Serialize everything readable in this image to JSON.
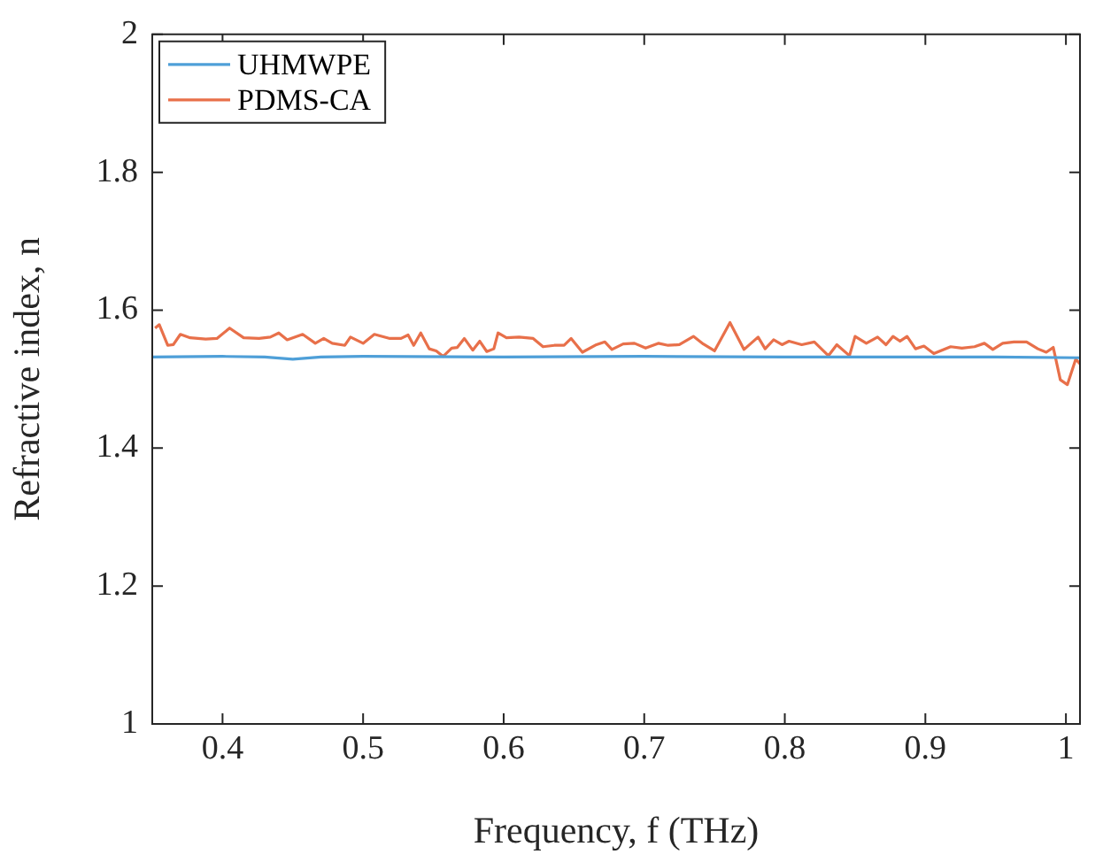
{
  "chart_data": {
    "type": "line",
    "xlabel": "Frequency, f (THz)",
    "ylabel": "Refractive index, n",
    "xlim": [
      0.35,
      1.01
    ],
    "xticks": [
      0.4,
      0.5,
      0.6,
      0.7,
      0.8,
      0.9,
      1
    ],
    "ylim": [
      1,
      2
    ],
    "yticks": [
      1,
      1.2,
      1.4,
      1.6,
      1.8,
      2
    ],
    "grid": false,
    "legend": "top left",
    "marker": "none",
    "line_style": "solid",
    "series": [
      {
        "name": "UHMWPE",
        "color": "#4e9fd8",
        "x": [
          0.35,
          0.4,
          0.43,
          0.45,
          0.47,
          0.5,
          0.6,
          0.7,
          0.8,
          0.9,
          0.95,
          1.01
        ],
        "values": [
          1.532,
          1.533,
          1.532,
          1.529,
          1.532,
          1.533,
          1.532,
          1.533,
          1.532,
          1.532,
          1.532,
          1.531
        ]
      },
      {
        "name": "PDMS-CA",
        "color": "#e8704a",
        "x": [
          0.352,
          0.355,
          0.361,
          0.365,
          0.37,
          0.377,
          0.388,
          0.396,
          0.405,
          0.415,
          0.426,
          0.434,
          0.44,
          0.446,
          0.457,
          0.466,
          0.472,
          0.478,
          0.487,
          0.491,
          0.5,
          0.508,
          0.519,
          0.527,
          0.532,
          0.536,
          0.541,
          0.547,
          0.552,
          0.557,
          0.563,
          0.567,
          0.572,
          0.578,
          0.583,
          0.588,
          0.593,
          0.596,
          0.602,
          0.611,
          0.621,
          0.628,
          0.636,
          0.643,
          0.648,
          0.656,
          0.666,
          0.672,
          0.677,
          0.685,
          0.693,
          0.701,
          0.71,
          0.717,
          0.725,
          0.735,
          0.742,
          0.75,
          0.761,
          0.771,
          0.781,
          0.786,
          0.792,
          0.798,
          0.803,
          0.812,
          0.821,
          0.831,
          0.837,
          0.846,
          0.85,
          0.858,
          0.866,
          0.872,
          0.877,
          0.882,
          0.887,
          0.893,
          0.899,
          0.906,
          0.918,
          0.926,
          0.935,
          0.942,
          0.948,
          0.955,
          0.963,
          0.972,
          0.98,
          0.986,
          0.991,
          0.996,
          1.001,
          1.007,
          1.01
        ],
        "values": [
          1.574,
          1.579,
          1.549,
          1.55,
          1.565,
          1.56,
          1.558,
          1.559,
          1.574,
          1.56,
          1.559,
          1.561,
          1.567,
          1.557,
          1.565,
          1.552,
          1.559,
          1.552,
          1.549,
          1.561,
          1.552,
          1.565,
          1.559,
          1.559,
          1.564,
          1.549,
          1.567,
          1.544,
          1.541,
          1.533,
          1.545,
          1.546,
          1.559,
          1.542,
          1.555,
          1.54,
          1.544,
          1.567,
          1.56,
          1.561,
          1.559,
          1.547,
          1.549,
          1.549,
          1.559,
          1.539,
          1.55,
          1.554,
          1.543,
          1.551,
          1.552,
          1.545,
          1.552,
          1.549,
          1.55,
          1.562,
          1.551,
          1.541,
          1.582,
          1.543,
          1.561,
          1.544,
          1.557,
          1.55,
          1.555,
          1.55,
          1.554,
          1.534,
          1.55,
          1.534,
          1.562,
          1.552,
          1.561,
          1.55,
          1.562,
          1.555,
          1.562,
          1.544,
          1.548,
          1.537,
          1.547,
          1.545,
          1.547,
          1.552,
          1.543,
          1.552,
          1.554,
          1.554,
          1.544,
          1.539,
          1.546,
          1.499,
          1.492,
          1.529,
          1.522
        ]
      }
    ]
  }
}
